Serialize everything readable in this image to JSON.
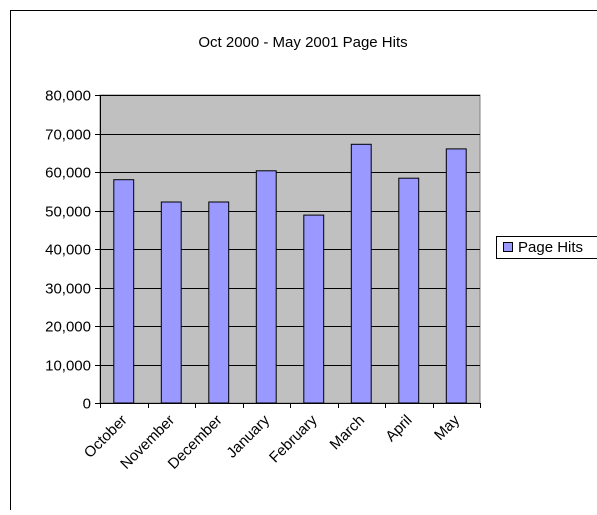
{
  "chart_data": {
    "type": "bar",
    "title": "Oct 2000 - May 2001 Page Hits",
    "xlabel": "",
    "ylabel": "",
    "categories": [
      "October",
      "November",
      "December",
      "January",
      "February",
      "March",
      "April",
      "May"
    ],
    "series": [
      {
        "name": "Page Hits",
        "values": [
          58000,
          52200,
          52200,
          60300,
          48800,
          67200,
          58400,
          66000
        ],
        "color": "#9999ff"
      }
    ],
    "ylim": [
      0,
      80000
    ],
    "yticks": [
      0,
      10000,
      20000,
      30000,
      40000,
      50000,
      60000,
      70000,
      80000
    ],
    "ytick_labels": [
      "0",
      "10,000",
      "20,000",
      "30,000",
      "40,000",
      "50,000",
      "60,000",
      "70,000",
      "80,000"
    ],
    "grid": true,
    "legend_position": "right",
    "plot_background": "#c0c0c0"
  }
}
